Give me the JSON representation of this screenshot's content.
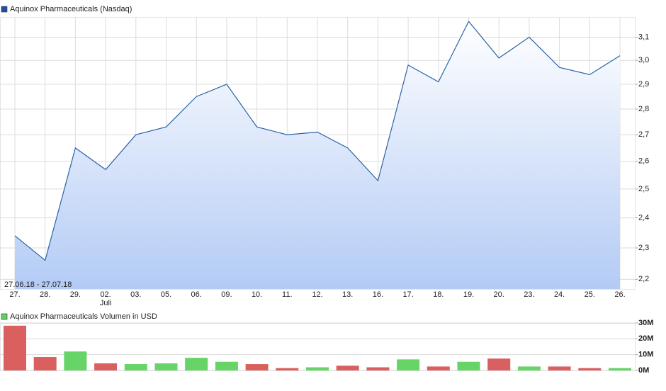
{
  "chart_data": [
    {
      "type": "line",
      "title": "Aquinox Pharmaceuticals (Nasdaq)",
      "icon_color": "#1f4fa0",
      "categories": [
        "27.",
        "28.",
        "29.",
        "02.",
        "03.",
        "05.",
        "06.",
        "09.",
        "10.",
        "11.",
        "12.",
        "13.",
        "16.",
        "17.",
        "18.",
        "19.",
        "20.",
        "23.",
        "24.",
        "25.",
        "26."
      ],
      "category_sublabels": [
        null,
        null,
        null,
        "Juli",
        null,
        null,
        null,
        null,
        null,
        null,
        null,
        null,
        null,
        null,
        null,
        null,
        null,
        null,
        null,
        null,
        null
      ],
      "annotation": "27.06.18 - 27.07.18",
      "series": [
        {
          "name": "Aquinox Pharmaceuticals",
          "color": "#2b63a6",
          "values": [
            2.34,
            2.26,
            2.65,
            2.57,
            2.7,
            2.73,
            2.85,
            2.9,
            2.73,
            2.7,
            2.71,
            2.65,
            2.53,
            2.98,
            2.91,
            3.17,
            3.01,
            3.1,
            2.97,
            2.94,
            3.02
          ]
        }
      ],
      "ylim": [
        2.17,
        3.19
      ],
      "log_scale": true,
      "grid": true,
      "yticks": [
        {
          "value": 2.2,
          "label": "2,2"
        },
        {
          "value": 2.3,
          "label": "2,3"
        },
        {
          "value": 2.4,
          "label": "2,4"
        },
        {
          "value": 2.5,
          "label": "2,5"
        },
        {
          "value": 2.6,
          "label": "2,6"
        },
        {
          "value": 2.7,
          "label": "2,7"
        },
        {
          "value": 2.8,
          "label": "2,8"
        },
        {
          "value": 2.9,
          "label": "2,9"
        },
        {
          "value": 3.0,
          "label": "3,0"
        },
        {
          "value": 3.1,
          "label": "3,1"
        }
      ]
    },
    {
      "type": "bar",
      "title": "Aquinox Pharmaceuticals Volumen in USD",
      "icon_color": "#5fcf5f",
      "values": [
        28300000,
        8500000,
        12000000,
        4500000,
        4000000,
        4500000,
        8000000,
        5500000,
        4000000,
        1500000,
        2000000,
        3000000,
        2000000,
        7000000,
        2500000,
        5500000,
        7500000,
        2500000,
        2500000,
        1500000,
        1500000
      ],
      "colors": [
        "#d9605e",
        "#d9605e",
        "#66d466",
        "#d9605e",
        "#66d466",
        "#66d466",
        "#66d466",
        "#66d466",
        "#d9605e",
        "#d9605e",
        "#66d466",
        "#d9605e",
        "#d9605e",
        "#66d466",
        "#d9605e",
        "#66d466",
        "#d9605e",
        "#66d466",
        "#d9605e",
        "#d9605e",
        "#66d466"
      ],
      "ylim": [
        0,
        30000000
      ],
      "grid": true,
      "yticks": [
        {
          "value": 0,
          "label": "0M"
        },
        {
          "value": 10000000,
          "label": "10M"
        },
        {
          "value": 20000000,
          "label": "20M"
        },
        {
          "value": 30000000,
          "label": "30M"
        }
      ]
    }
  ]
}
